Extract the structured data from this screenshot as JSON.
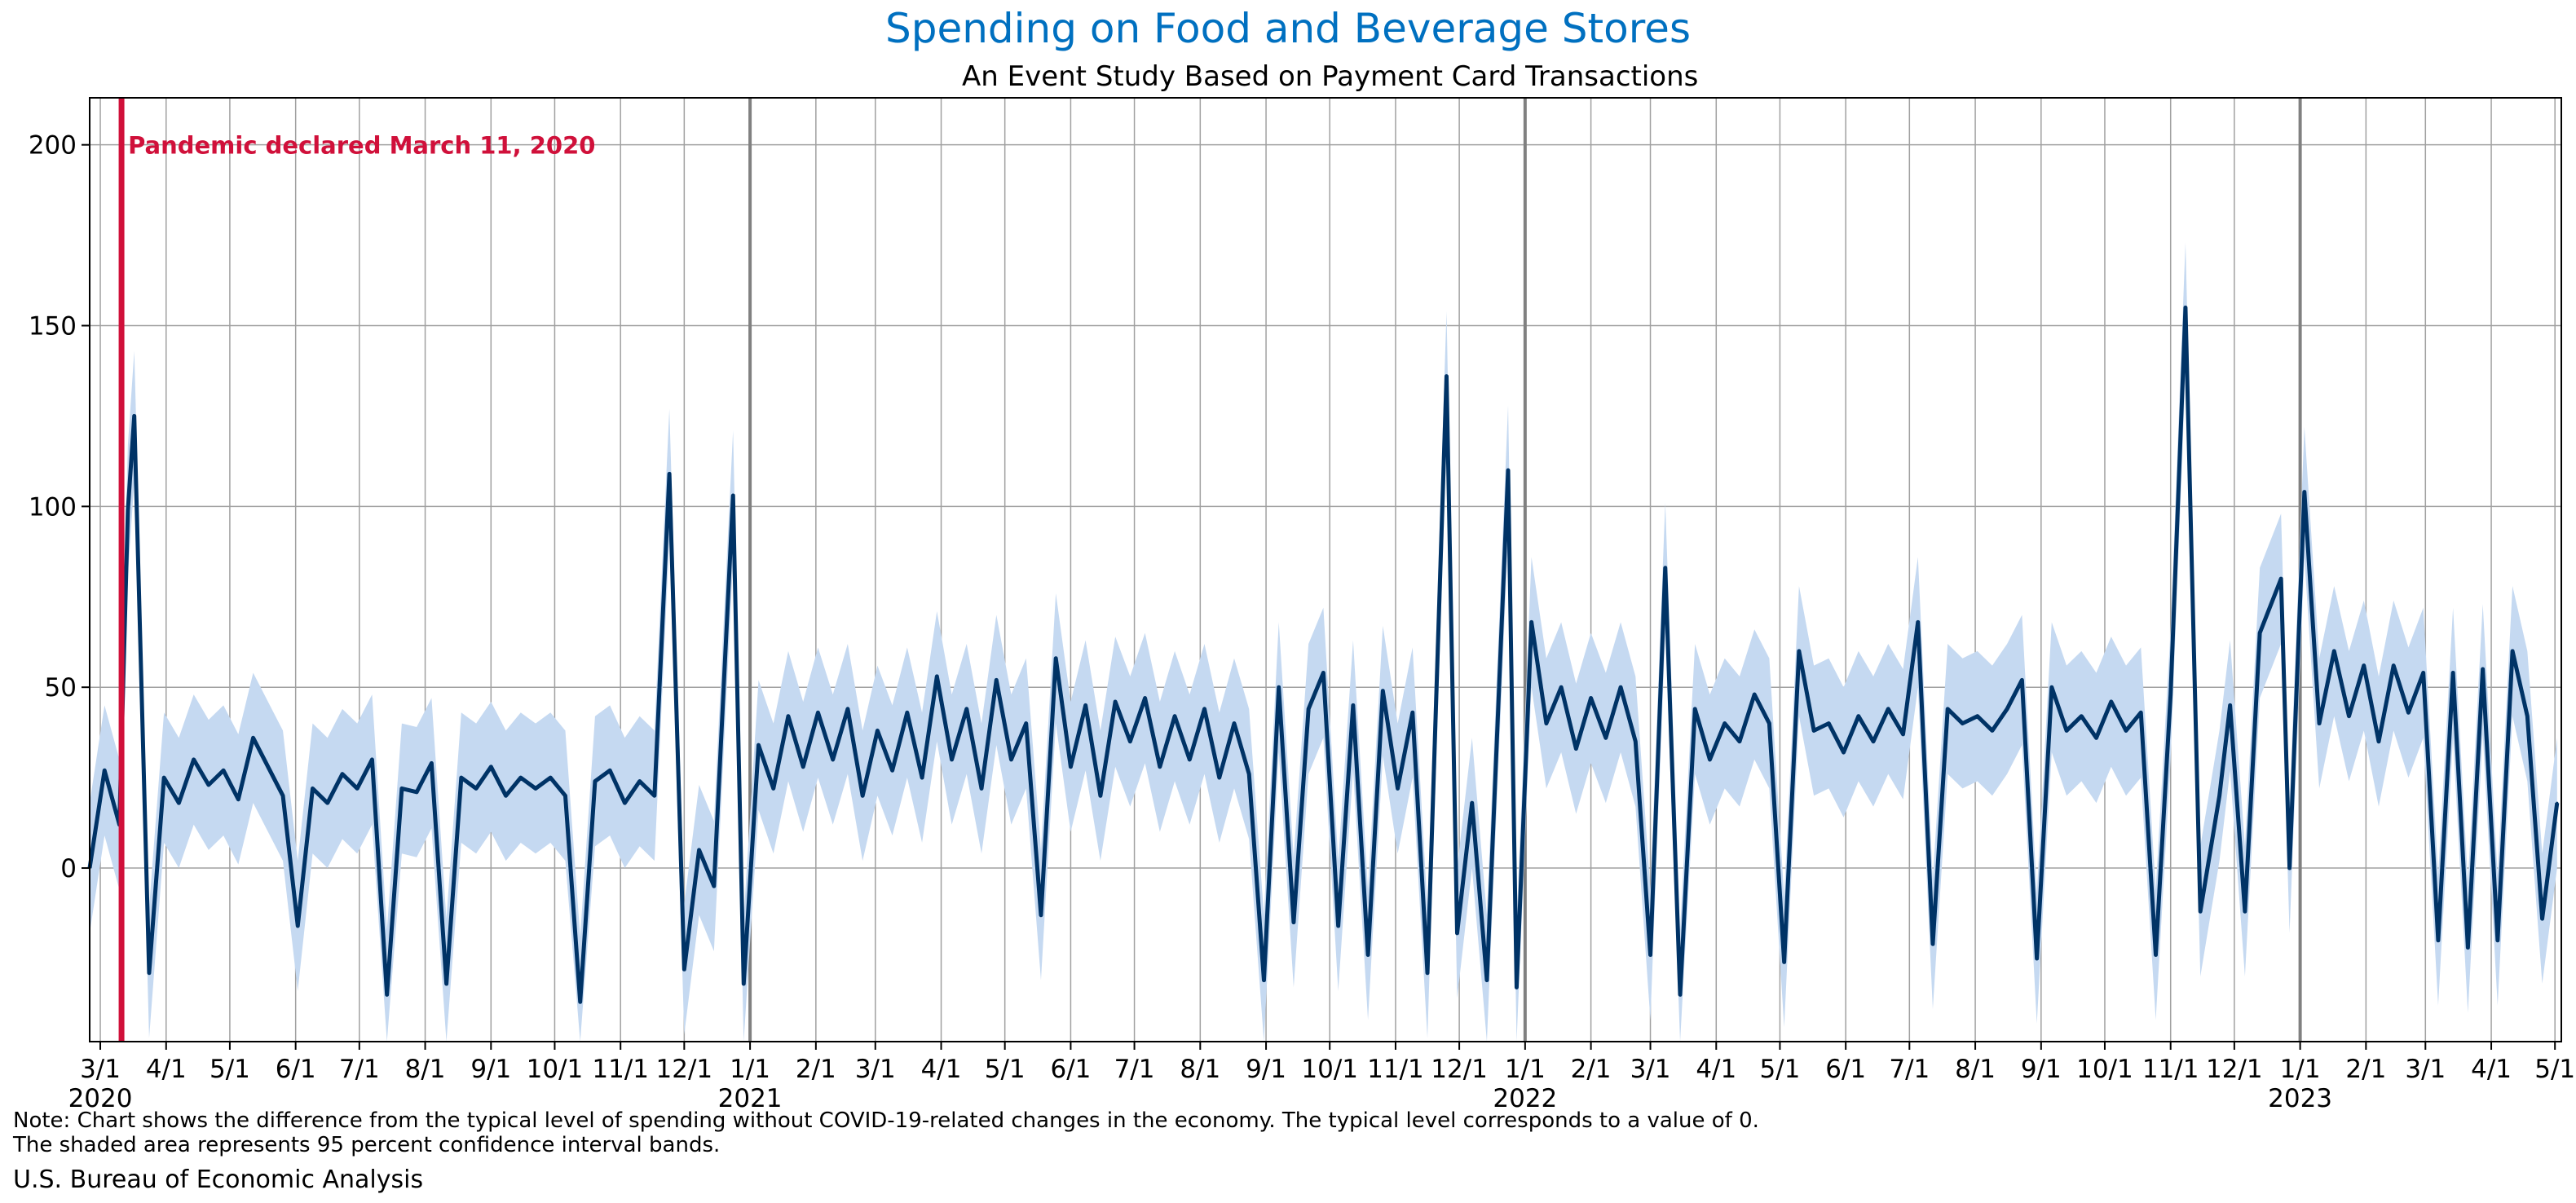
{
  "title": "Spending on Food and Beverage Stores",
  "subtitle": "An Event Study Based on Payment Card Transactions",
  "note_line1": "Note: Chart shows the difference from the typical level of spending without COVID-19-related changes in the economy. The typical level corresponds to a value of 0.",
  "note_line2": "The shaded area represents 95 percent confidence interval bands.",
  "source": "U.S. Bureau of Economic Analysis",
  "colors": {
    "title": "#0070c0",
    "line": "#003366",
    "band": "#c5d9f1",
    "event": "#d0103a",
    "grid": "#a0a0a0",
    "year_line": "#808080"
  },
  "chart_data": {
    "type": "line",
    "title": "Spending on Food and Beverage Stores",
    "subtitle": "An Event Study Based on Payment Card Transactions",
    "xlabel": "",
    "ylabel": "",
    "x_range": [
      "2020-02-25",
      "2023-05-04"
    ],
    "ylim": [
      -48,
      213
    ],
    "yticks": [
      0,
      50,
      100,
      150,
      200
    ],
    "grid": true,
    "event": {
      "date": "2020-03-11",
      "label": "Pandemic declared March 11, 2020"
    },
    "x_tick_labels": [
      {
        "date": "2020-03-01",
        "label": "3/1"
      },
      {
        "date": "2020-04-01",
        "label": "4/1"
      },
      {
        "date": "2020-05-01",
        "label": "5/1"
      },
      {
        "date": "2020-06-01",
        "label": "6/1"
      },
      {
        "date": "2020-07-01",
        "label": "7/1"
      },
      {
        "date": "2020-08-01",
        "label": "8/1"
      },
      {
        "date": "2020-09-01",
        "label": "9/1"
      },
      {
        "date": "2020-10-01",
        "label": "10/1"
      },
      {
        "date": "2020-11-01",
        "label": "11/1"
      },
      {
        "date": "2020-12-01",
        "label": "12/1"
      },
      {
        "date": "2021-01-01",
        "label": "1/1"
      },
      {
        "date": "2021-02-01",
        "label": "2/1"
      },
      {
        "date": "2021-03-01",
        "label": "3/1"
      },
      {
        "date": "2021-04-01",
        "label": "4/1"
      },
      {
        "date": "2021-05-01",
        "label": "5/1"
      },
      {
        "date": "2021-06-01",
        "label": "6/1"
      },
      {
        "date": "2021-07-01",
        "label": "7/1"
      },
      {
        "date": "2021-08-01",
        "label": "8/1"
      },
      {
        "date": "2021-09-01",
        "label": "9/1"
      },
      {
        "date": "2021-10-01",
        "label": "10/1"
      },
      {
        "date": "2021-11-01",
        "label": "11/1"
      },
      {
        "date": "2021-12-01",
        "label": "12/1"
      },
      {
        "date": "2022-01-01",
        "label": "1/1"
      },
      {
        "date": "2022-02-01",
        "label": "2/1"
      },
      {
        "date": "2022-03-01",
        "label": "3/1"
      },
      {
        "date": "2022-04-01",
        "label": "4/1"
      },
      {
        "date": "2022-05-01",
        "label": "5/1"
      },
      {
        "date": "2022-06-01",
        "label": "6/1"
      },
      {
        "date": "2022-07-01",
        "label": "7/1"
      },
      {
        "date": "2022-08-01",
        "label": "8/1"
      },
      {
        "date": "2022-09-01",
        "label": "9/1"
      },
      {
        "date": "2022-10-01",
        "label": "10/1"
      },
      {
        "date": "2022-11-01",
        "label": "11/1"
      },
      {
        "date": "2022-12-01",
        "label": "12/1"
      },
      {
        "date": "2023-01-01",
        "label": "1/1"
      },
      {
        "date": "2023-02-01",
        "label": "2/1"
      },
      {
        "date": "2023-03-01",
        "label": "3/1"
      },
      {
        "date": "2023-04-01",
        "label": "4/1"
      },
      {
        "date": "2023-05-01",
        "label": "5/1"
      }
    ],
    "year_labels": [
      {
        "date": "2020-03-01",
        "label": "2020"
      },
      {
        "date": "2021-01-01",
        "label": "2021"
      },
      {
        "date": "2022-01-01",
        "label": "2022"
      },
      {
        "date": "2023-01-01",
        "label": "2023"
      }
    ],
    "series": [
      {
        "name": "Spending (weekly-resampled view of daily line)",
        "x": [
          "2020-02-25",
          "2020-03-03",
          "2020-03-10",
          "2020-03-14",
          "2020-03-17",
          "2020-03-24",
          "2020-03-31",
          "2020-04-07",
          "2020-04-14",
          "2020-04-21",
          "2020-04-28",
          "2020-05-05",
          "2020-05-12",
          "2020-05-19",
          "2020-05-26",
          "2020-06-02",
          "2020-06-09",
          "2020-06-16",
          "2020-06-23",
          "2020-06-30",
          "2020-07-07",
          "2020-07-14",
          "2020-07-21",
          "2020-07-28",
          "2020-08-04",
          "2020-08-11",
          "2020-08-18",
          "2020-08-25",
          "2020-09-01",
          "2020-09-08",
          "2020-09-15",
          "2020-09-22",
          "2020-09-29",
          "2020-10-06",
          "2020-10-13",
          "2020-10-20",
          "2020-10-27",
          "2020-11-03",
          "2020-11-10",
          "2020-11-17",
          "2020-11-24",
          "2020-12-01",
          "2020-12-08",
          "2020-12-15",
          "2020-12-24",
          "2020-12-29",
          "2021-01-05",
          "2021-01-12",
          "2021-01-19",
          "2021-01-26",
          "2021-02-02",
          "2021-02-09",
          "2021-02-16",
          "2021-02-23",
          "2021-03-02",
          "2021-03-09",
          "2021-03-16",
          "2021-03-23",
          "2021-03-30",
          "2021-04-06",
          "2021-04-13",
          "2021-04-20",
          "2021-04-27",
          "2021-05-04",
          "2021-05-11",
          "2021-05-18",
          "2021-05-25",
          "2021-06-01",
          "2021-06-08",
          "2021-06-15",
          "2021-06-22",
          "2021-06-29",
          "2021-07-06",
          "2021-07-13",
          "2021-07-20",
          "2021-07-27",
          "2021-08-03",
          "2021-08-10",
          "2021-08-17",
          "2021-08-24",
          "2021-08-31",
          "2021-09-07",
          "2021-09-14",
          "2021-09-21",
          "2021-09-28",
          "2021-10-05",
          "2021-10-12",
          "2021-10-19",
          "2021-10-26",
          "2021-11-02",
          "2021-11-09",
          "2021-11-16",
          "2021-11-25",
          "2021-11-30",
          "2021-12-07",
          "2021-12-14",
          "2021-12-24",
          "2021-12-28",
          "2022-01-04",
          "2022-01-11",
          "2022-01-18",
          "2022-01-25",
          "2022-02-01",
          "2022-02-08",
          "2022-02-15",
          "2022-02-22",
          "2022-03-01",
          "2022-03-08",
          "2022-03-15",
          "2022-03-22",
          "2022-03-29",
          "2022-04-05",
          "2022-04-12",
          "2022-04-19",
          "2022-04-26",
          "2022-05-03",
          "2022-05-10",
          "2022-05-17",
          "2022-05-24",
          "2022-05-31",
          "2022-06-07",
          "2022-06-14",
          "2022-06-21",
          "2022-06-28",
          "2022-07-05",
          "2022-07-12",
          "2022-07-19",
          "2022-07-26",
          "2022-08-02",
          "2022-08-09",
          "2022-08-16",
          "2022-08-23",
          "2022-08-30",
          "2022-09-06",
          "2022-09-13",
          "2022-09-20",
          "2022-09-27",
          "2022-10-04",
          "2022-10-11",
          "2022-10-18",
          "2022-10-25",
          "2022-11-01",
          "2022-11-08",
          "2022-11-15",
          "2022-11-24",
          "2022-11-29",
          "2022-12-06",
          "2022-12-13",
          "2022-12-23",
          "2022-12-27",
          "2023-01-03",
          "2023-01-10",
          "2023-01-17",
          "2023-01-24",
          "2023-01-31",
          "2023-02-07",
          "2023-02-14",
          "2023-02-21",
          "2023-02-28",
          "2023-03-07",
          "2023-03-14",
          "2023-03-21",
          "2023-03-28",
          "2023-04-04",
          "2023-04-11",
          "2023-04-18",
          "2023-04-25",
          "2023-05-02"
        ],
        "values": [
          0,
          27,
          12,
          99,
          125,
          -29,
          25,
          18,
          30,
          23,
          27,
          19,
          36,
          28,
          20,
          -16,
          22,
          18,
          26,
          22,
          30,
          -35,
          22,
          21,
          29,
          -32,
          25,
          22,
          28,
          20,
          25,
          22,
          25,
          20,
          -37,
          24,
          27,
          18,
          24,
          20,
          109,
          -28,
          5,
          -5,
          103,
          -32,
          34,
          22,
          42,
          28,
          43,
          30,
          44,
          20,
          38,
          27,
          43,
          25,
          53,
          30,
          44,
          22,
          52,
          30,
          40,
          -13,
          58,
          28,
          45,
          20,
          46,
          35,
          47,
          28,
          42,
          30,
          44,
          25,
          40,
          26,
          -31,
          50,
          -15,
          44,
          54,
          -16,
          45,
          -24,
          49,
          22,
          43,
          -29,
          136,
          -18,
          18,
          -31,
          110,
          -33,
          68,
          40,
          50,
          33,
          47,
          36,
          50,
          35,
          -24,
          83,
          -35,
          44,
          30,
          40,
          35,
          48,
          40,
          -26,
          60,
          38,
          40,
          32,
          42,
          35,
          44,
          37,
          68,
          -21,
          44,
          40,
          42,
          38,
          44,
          52,
          -25,
          50,
          38,
          42,
          36,
          46,
          38,
          43,
          -24,
          48,
          155,
          -12,
          20,
          45,
          -12,
          65,
          80,
          0,
          104,
          40,
          60,
          42,
          56,
          35,
          56,
          43,
          54,
          -20,
          54,
          -22,
          55,
          -20,
          60,
          42,
          -14,
          18
        ]
      },
      {
        "name": "95 percent confidence band",
        "lower_offset": 18,
        "upper_offset": 18
      }
    ]
  }
}
